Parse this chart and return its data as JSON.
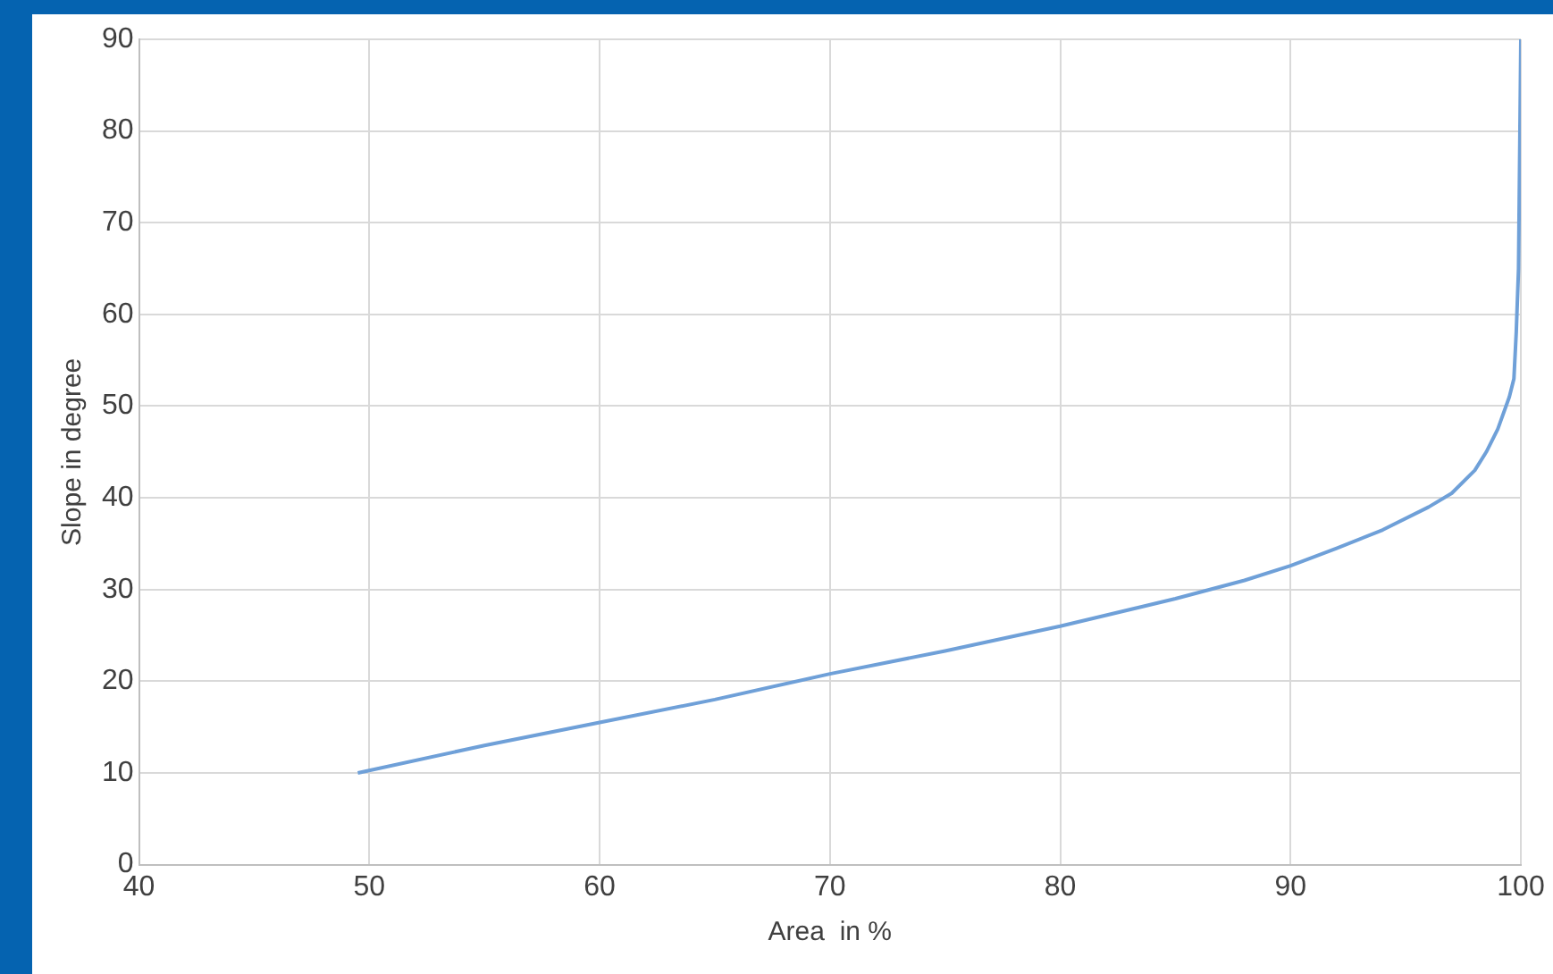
{
  "chart_data": {
    "type": "line",
    "xlabel": "Area  in %",
    "ylabel": "Slope in degree",
    "series": [
      {
        "color": "#6fa0d8",
        "x": [
          49.5,
          55,
          60,
          65,
          70,
          75,
          80,
          85,
          88,
          90,
          92,
          94,
          96,
          97,
          98,
          98.5,
          99,
          99.5,
          99.7,
          99.8,
          99.9,
          100
        ],
        "values": [
          10,
          13,
          15.5,
          18,
          20.8,
          23.3,
          26,
          29,
          31,
          32.6,
          34.5,
          36.5,
          39,
          40.5,
          43,
          45,
          47.5,
          51,
          53,
          58,
          65,
          90
        ]
      }
    ],
    "xlim": [
      40,
      100
    ],
    "xticks": [
      40,
      50,
      60,
      70,
      80,
      90,
      100
    ],
    "ylim": [
      0,
      90
    ],
    "yticks": [
      0,
      10,
      20,
      30,
      40,
      50,
      60,
      70,
      80,
      90
    ],
    "grid": true,
    "marker": "none",
    "line_style": "solid"
  }
}
